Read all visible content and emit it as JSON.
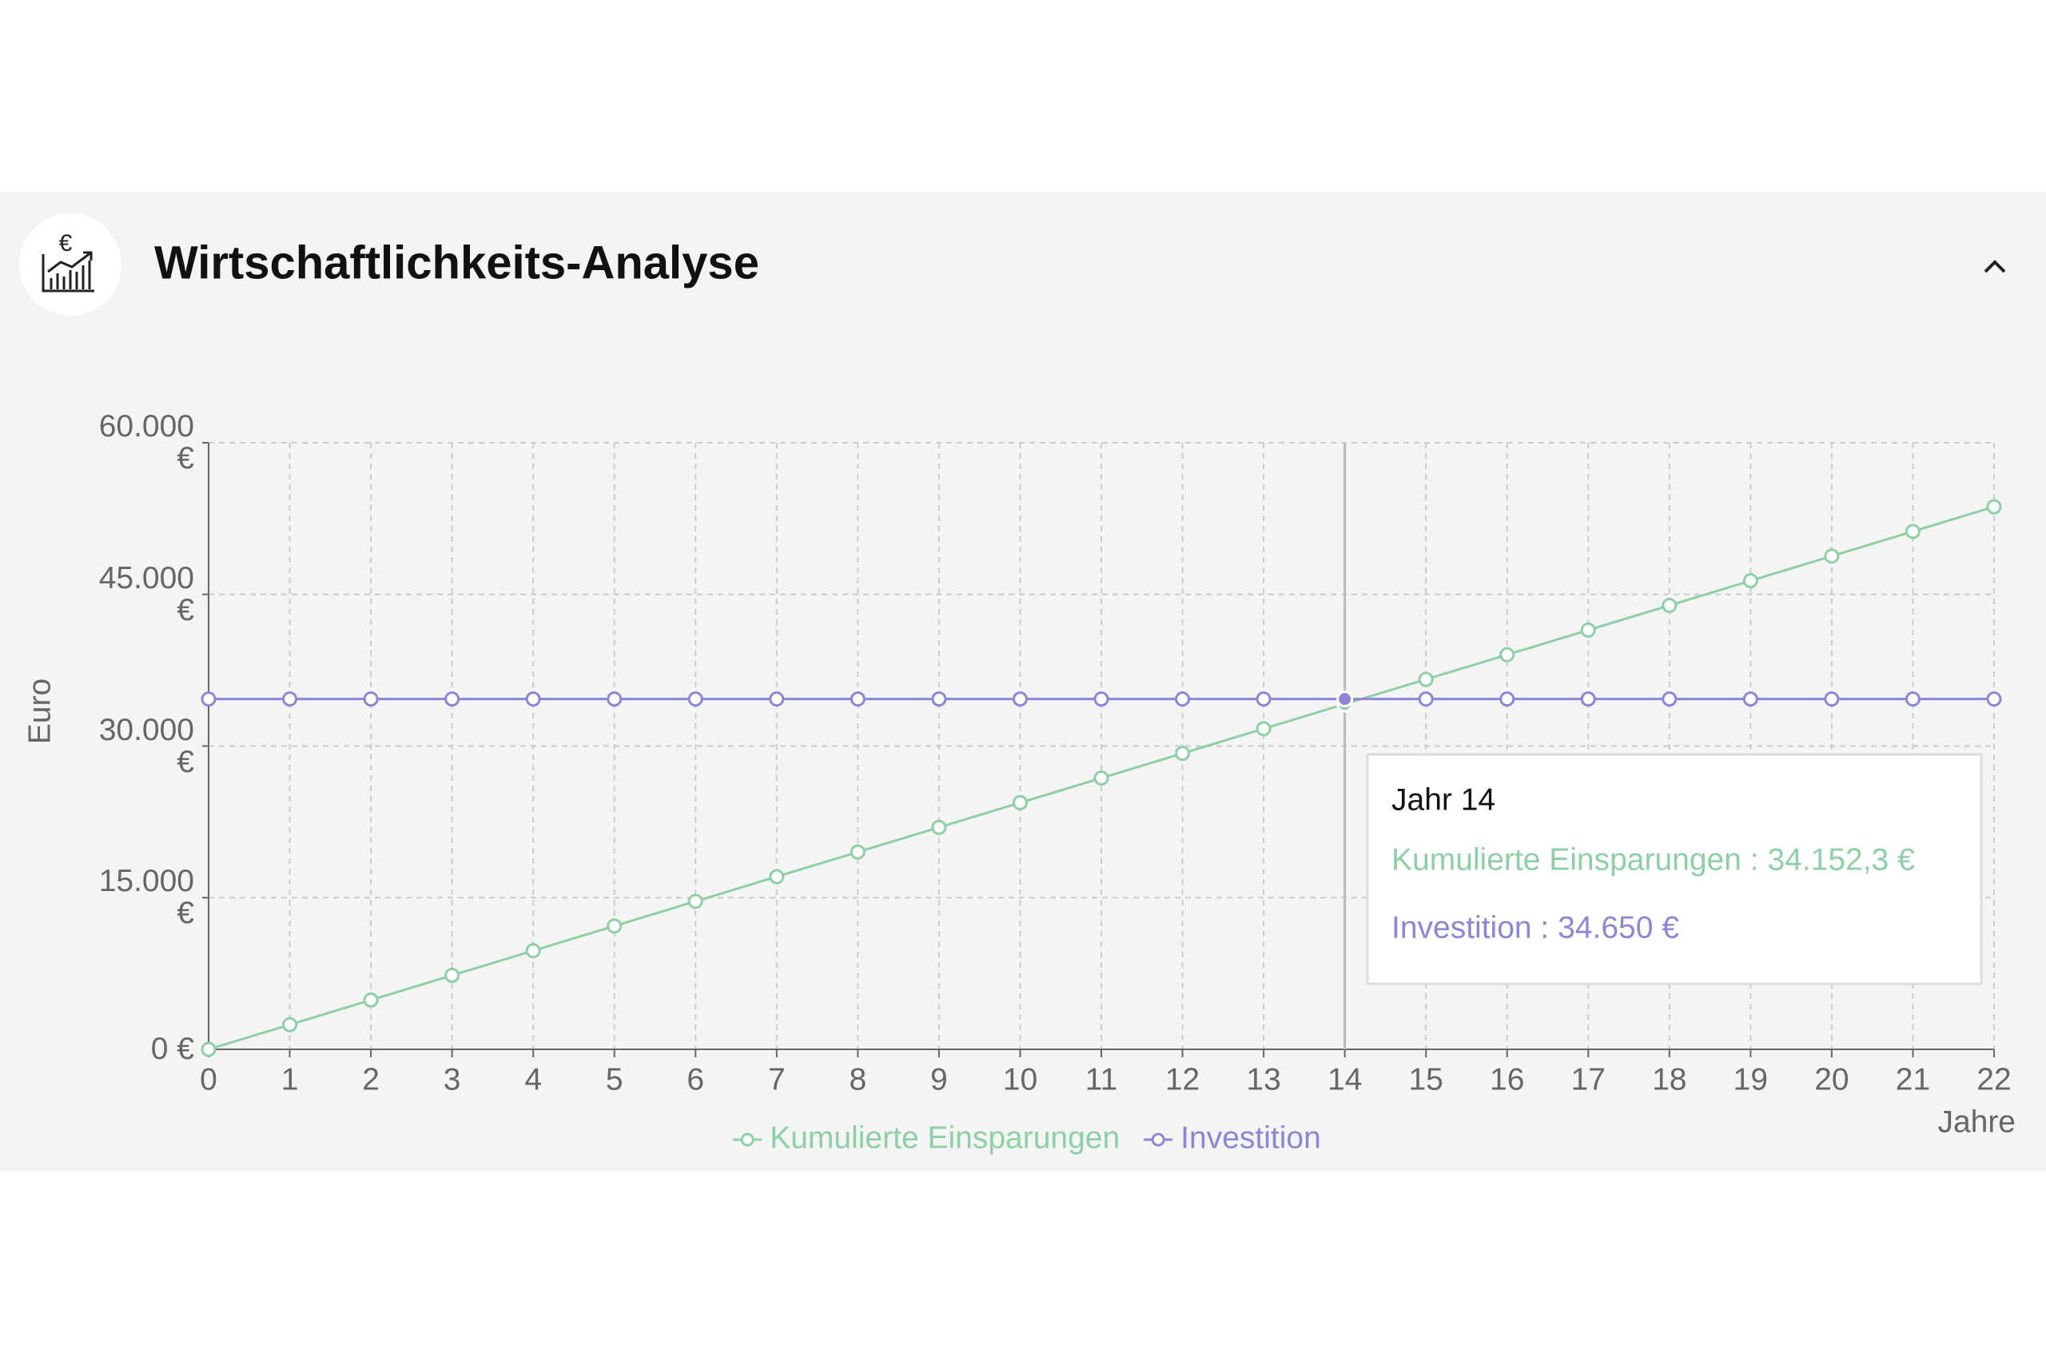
{
  "header": {
    "title": "Wirtschaftlichkeits-Analyse",
    "icon_symbol": "€"
  },
  "chart_data": {
    "type": "line",
    "x_label": "Jahre",
    "y_label": "Euro",
    "x": [
      0,
      1,
      2,
      3,
      4,
      5,
      6,
      7,
      8,
      9,
      10,
      11,
      12,
      13,
      14,
      15,
      16,
      17,
      18,
      19,
      20,
      21,
      22
    ],
    "xlim": [
      0,
      22
    ],
    "xticks": [
      0,
      1,
      2,
      3,
      4,
      5,
      6,
      7,
      8,
      9,
      10,
      11,
      12,
      13,
      14,
      15,
      16,
      17,
      18,
      19,
      20,
      21,
      22
    ],
    "ylim": [
      0,
      60000
    ],
    "yticks": [
      {
        "value": 0,
        "label": "0 €"
      },
      {
        "value": 15000,
        "label": "15.000 €"
      },
      {
        "value": 30000,
        "label": "30.000 €"
      },
      {
        "value": 45000,
        "label": "45.000 €"
      },
      {
        "value": 60000,
        "label": "60.000 €"
      }
    ],
    "grid": true,
    "legend": "bottom",
    "series": [
      {
        "name": "Kumulierte Einsparungen",
        "color": "#8fcfa5",
        "values": [
          0,
          2439,
          4879,
          7318,
          9758,
          12197,
          14637,
          17076,
          19516,
          21955,
          24395,
          26834,
          29273,
          31713,
          34152.3,
          36592,
          39031,
          41471,
          43910,
          46350,
          48789,
          51228,
          53668
        ]
      },
      {
        "name": "Investition",
        "color": "#8b86d6",
        "values": [
          34650,
          34650,
          34650,
          34650,
          34650,
          34650,
          34650,
          34650,
          34650,
          34650,
          34650,
          34650,
          34650,
          34650,
          34650,
          34650,
          34650,
          34650,
          34650,
          34650,
          34650,
          34650,
          34650
        ]
      }
    ],
    "tooltip": {
      "x_index": 14,
      "title": "Jahr 14",
      "lines": [
        "Kumulierte Einsparungen : 34.152,3 €",
        "Investition : 34.650 €"
      ]
    }
  }
}
